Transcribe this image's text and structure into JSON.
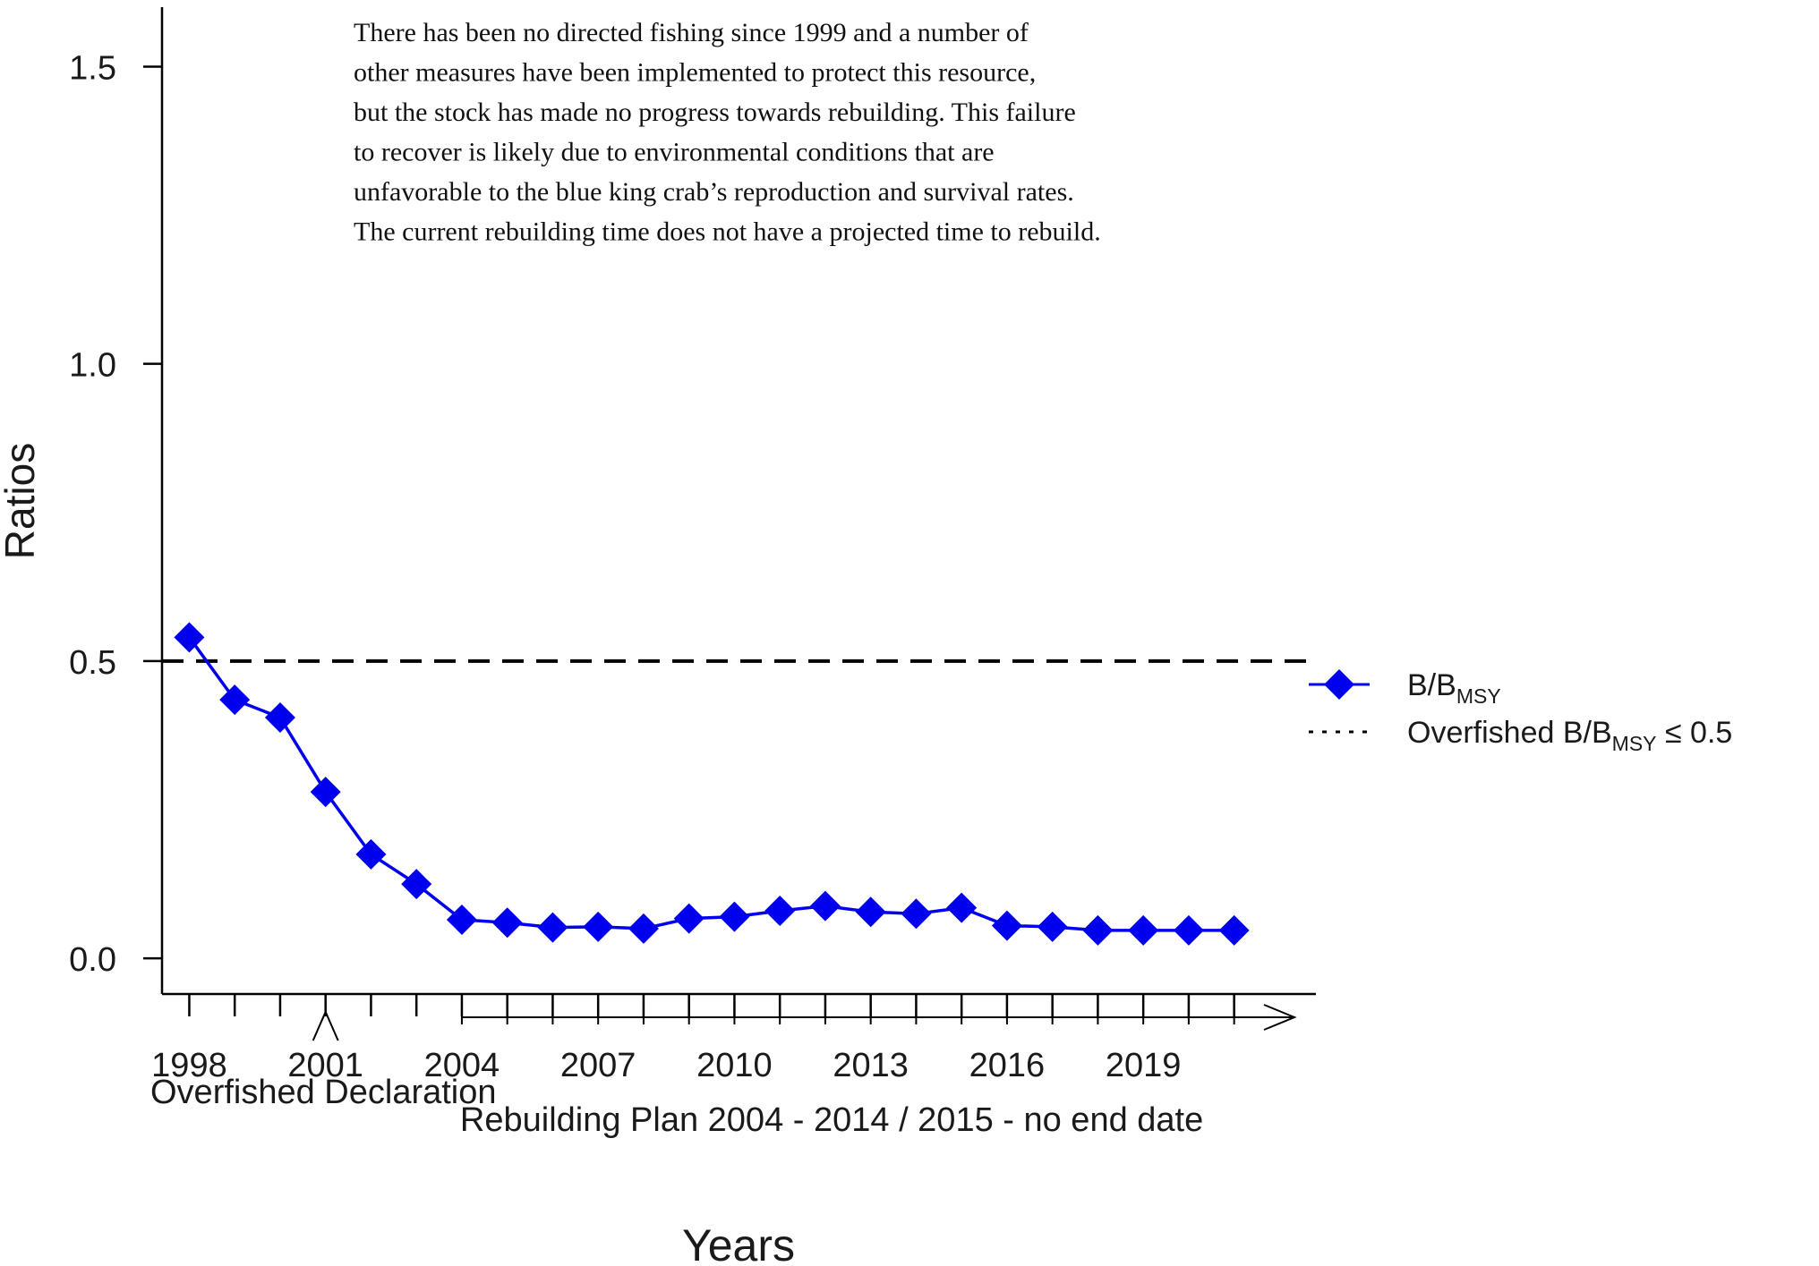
{
  "chart_data": {
    "type": "line",
    "xlabel": "Years",
    "ylabel": "Ratios",
    "xlim": [
      1997.4,
      2022.8
    ],
    "ylim": [
      -0.06,
      1.6
    ],
    "x_tick_labels": [
      "1998",
      "2001",
      "2004",
      "2007",
      "2010",
      "2013",
      "2016",
      "2019"
    ],
    "y_tick_labels": [
      "0.0",
      "0.5",
      "1.0",
      "1.5"
    ],
    "series": [
      {
        "name": "B/B_MSY",
        "name_main": "B/B",
        "name_sub": "MSY",
        "color": "#0000ee",
        "marker": "diamond",
        "x": [
          1998,
          1999,
          2000,
          2001,
          2002,
          2003,
          2004,
          2005,
          2006,
          2007,
          2008,
          2009,
          2010,
          2011,
          2012,
          2013,
          2014,
          2015,
          2016,
          2017,
          2018,
          2019,
          2020,
          2021
        ],
        "y": [
          0.54,
          0.435,
          0.405,
          0.28,
          0.175,
          0.125,
          0.065,
          0.06,
          0.052,
          0.053,
          0.05,
          0.067,
          0.07,
          0.08,
          0.088,
          0.078,
          0.075,
          0.085,
          0.055,
          0.053,
          0.047,
          0.047,
          0.047,
          0.047
        ]
      }
    ],
    "threshold": {
      "value": 0.5,
      "style": "dashed",
      "color": "#000000",
      "legend_main": "Overfished B/B",
      "legend_sub": "MSY",
      "legend_tail": " ≤ 0.5"
    },
    "legend_placement": "right",
    "annotation_lines": [
      "There has been no directed fishing since 1999 and a number of",
      "other measures have been implemented to protect this resource,",
      "but the stock has made no progress towards rebuilding. This failure",
      "to recover is likely due to environmental conditions that are",
      "unfavorable to the blue king crab’s reproduction and survival rates.",
      "The current rebuilding time does not have a projected time to rebuild."
    ],
    "events": [
      {
        "label": "Overfished Declaration",
        "year": 2001,
        "marker": "up-arrow"
      },
      {
        "label": "Rebuilding Plan 2004 - 2014 / 2015 - no end date",
        "start_year": 2004,
        "marker": "right-arrow"
      }
    ],
    "grid": false
  }
}
